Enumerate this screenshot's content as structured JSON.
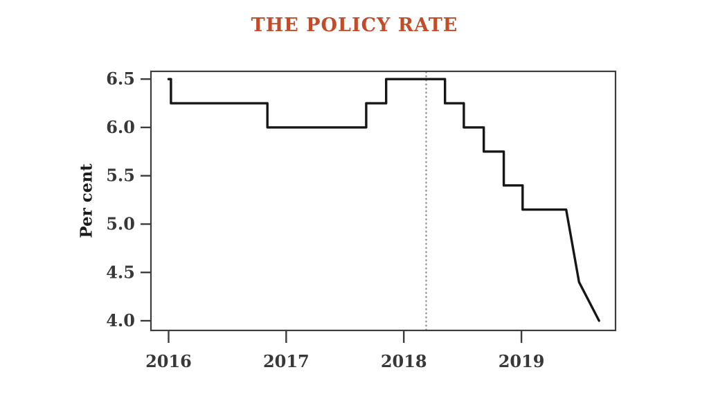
{
  "figure": {
    "background": "#ffffff"
  },
  "chart_data": {
    "type": "line",
    "line_style": "step",
    "title": "THE POLICY RATE",
    "title_color": "#c04c2a",
    "xlabel": "",
    "ylabel": "Per cent",
    "x_ticks": [
      "2016",
      "2017",
      "2018",
      "2019"
    ],
    "x_tick_values": [
      2016,
      2017,
      2018,
      2019
    ],
    "y_ticks": [
      "6.5",
      "6.0",
      "5.5",
      "5.0",
      "4.5",
      "4.0"
    ],
    "y_tick_values": [
      6.5,
      6.0,
      5.5,
      5.0,
      4.5,
      4.0
    ],
    "xlim": [
      2015.85,
      2019.8
    ],
    "ylim": [
      3.9,
      6.58
    ],
    "grid": false,
    "legend": "none",
    "frame": true,
    "reference_line": {
      "x": 2018.19,
      "style": "dotted",
      "color": "#8f8f8f"
    },
    "series": [
      {
        "name": "policy-rate",
        "color": "#161616",
        "points": [
          [
            2016.0,
            6.5
          ],
          [
            2016.02,
            6.5
          ],
          [
            2016.02,
            6.25
          ],
          [
            2016.84,
            6.25
          ],
          [
            2016.84,
            6.0
          ],
          [
            2017.68,
            6.0
          ],
          [
            2017.68,
            6.25
          ],
          [
            2017.85,
            6.25
          ],
          [
            2017.85,
            6.5
          ],
          [
            2018.35,
            6.5
          ],
          [
            2018.35,
            6.25
          ],
          [
            2018.51,
            6.25
          ],
          [
            2018.51,
            6.0
          ],
          [
            2018.68,
            6.0
          ],
          [
            2018.68,
            5.75
          ],
          [
            2018.85,
            5.75
          ],
          [
            2018.85,
            5.4
          ],
          [
            2019.01,
            5.4
          ],
          [
            2019.01,
            5.15
          ],
          [
            2019.38,
            5.15
          ],
          [
            2019.49,
            4.4
          ],
          [
            2019.66,
            4.0
          ]
        ]
      }
    ],
    "colors": {
      "axis": "#3c3c3c",
      "tick_labels": "#383838",
      "line": "#161616",
      "reference": "#8f8f8f",
      "background": "#ffffff"
    }
  }
}
